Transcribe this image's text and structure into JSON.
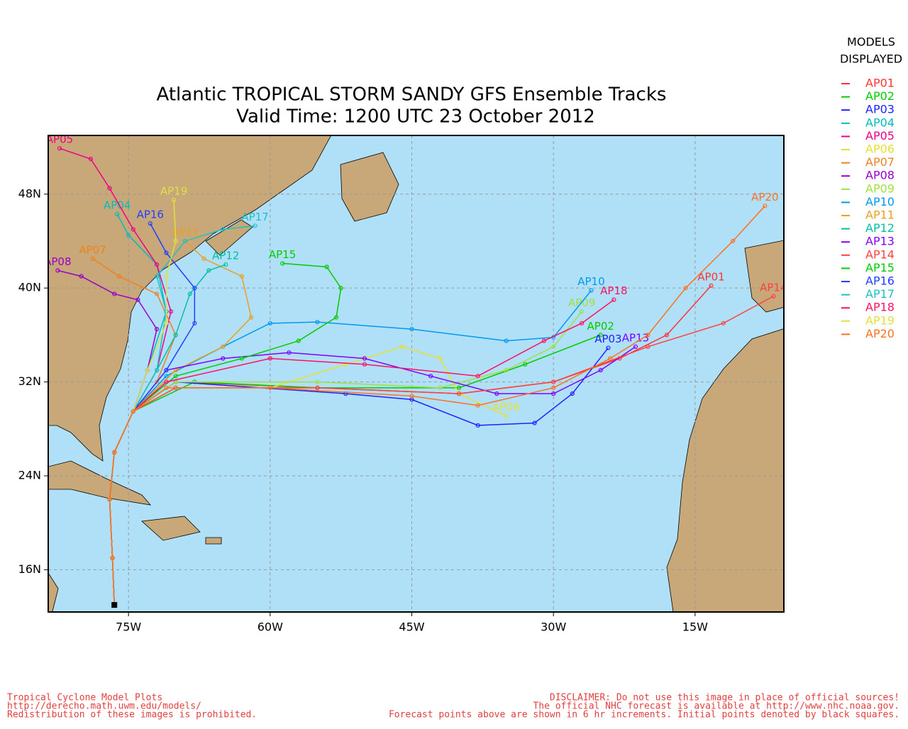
{
  "chart_data": {
    "type": "track_map",
    "title": "Atlantic TROPICAL STORM SANDY GFS Ensemble Tracks",
    "subtitle": "Valid Time: 1200 UTC 23 October 2012",
    "xlim": [
      -83.5,
      -5.6
    ],
    "ylim": [
      12.4,
      53
    ],
    "xticks": [
      {
        "value": -75,
        "label": "75W"
      },
      {
        "value": -60,
        "label": "60W"
      },
      {
        "value": -45,
        "label": "45W"
      },
      {
        "value": -30,
        "label": "30W"
      },
      {
        "value": -15,
        "label": "15W"
      }
    ],
    "yticks": [
      {
        "value": 16,
        "label": "16N"
      },
      {
        "value": 24,
        "label": "24N"
      },
      {
        "value": 32,
        "label": "32N"
      },
      {
        "value": 40,
        "label": "40N"
      },
      {
        "value": 48,
        "label": "48N"
      }
    ],
    "grid": true,
    "legend_title": [
      "MODELS",
      "DISPLAYED"
    ],
    "series": [
      {
        "name": "AP01",
        "color": "#ff3333",
        "lon": [
          -76.5,
          -76.7,
          -77,
          -76.5,
          -74.5,
          -70,
          -55,
          -40,
          -30,
          -23,
          -18,
          -13.3
        ],
        "lat": [
          13,
          17,
          22,
          26,
          29.5,
          32,
          31.5,
          31,
          32,
          34,
          36,
          40.2
        ]
      },
      {
        "name": "AP02",
        "color": "#00cc00",
        "lon": [
          -76.5,
          -76.7,
          -77,
          -76.5,
          -74.5,
          -68,
          -55,
          -40,
          -33,
          -25
        ],
        "lat": [
          13,
          17,
          22,
          26,
          29.5,
          32,
          31.5,
          31.5,
          33.5,
          36
        ]
      },
      {
        "name": "AP03",
        "color": "#2020ff",
        "lon": [
          -76.5,
          -76.7,
          -77,
          -76.5,
          -74.5,
          -70,
          -52,
          -45,
          -38,
          -32,
          -28,
          -24.2
        ],
        "lat": [
          13,
          17,
          22,
          26,
          29.5,
          32,
          31,
          30.5,
          28.3,
          28.5,
          31,
          34.9
        ]
      },
      {
        "name": "AP04",
        "color": "#00bbbb",
        "lon": [
          -76.5,
          -76.7,
          -77,
          -76.5,
          -74.5,
          -73,
          -71,
          -72,
          -75,
          -76.2
        ],
        "lat": [
          13,
          17,
          22,
          26,
          29.5,
          33,
          38,
          42,
          44.5,
          46.3
        ]
      },
      {
        "name": "AP05",
        "color": "#ee0088",
        "lon": [
          -76.5,
          -76.7,
          -77,
          -76.5,
          -74.5,
          -72,
          -70.5,
          -72,
          -74.5,
          -77,
          -79,
          -82.3
        ],
        "lat": [
          13,
          17,
          22,
          26,
          29.5,
          33,
          38,
          42,
          45,
          48.5,
          51,
          51.9
        ]
      },
      {
        "name": "AP06",
        "color": "#e8e030",
        "lon": [
          -76.5,
          -76.7,
          -77,
          -76.5,
          -74.5,
          -70,
          -60,
          -52,
          -46,
          -42,
          -40,
          -35
        ],
        "lat": [
          13,
          17,
          22,
          26,
          29.5,
          31.5,
          31.5,
          33.5,
          35,
          34,
          31,
          29.1
        ]
      },
      {
        "name": "AP07",
        "color": "#f08020",
        "lon": [
          -76.5,
          -76.7,
          -77,
          -76.5,
          -74.5,
          -72,
          -70,
          -72,
          -76,
          -78.8
        ],
        "lat": [
          13,
          17,
          22,
          26,
          29.5,
          32,
          36,
          39.5,
          41,
          42.5
        ]
      },
      {
        "name": "AP08",
        "color": "#9900cc",
        "lon": [
          -76.5,
          -76.7,
          -77,
          -76.5,
          -74.5,
          -73,
          -72,
          -74,
          -76.5,
          -80,
          -82.5
        ],
        "lat": [
          13,
          17,
          22,
          26,
          29.5,
          33,
          36.5,
          39,
          39.5,
          41,
          41.5
        ]
      },
      {
        "name": "AP09",
        "color": "#a0e040",
        "lon": [
          -76.5,
          -76.7,
          -77,
          -76.5,
          -74.5,
          -70,
          -55,
          -42,
          -35,
          -30,
          -27
        ],
        "lat": [
          13,
          17,
          22,
          26,
          29.5,
          32,
          32,
          31.5,
          33,
          35,
          38
        ]
      },
      {
        "name": "AP10",
        "color": "#0099ee",
        "lon": [
          -76.5,
          -76.7,
          -77,
          -76.5,
          -74.5,
          -71,
          -65,
          -60,
          -55,
          -45,
          -35,
          -30,
          -26
        ],
        "lat": [
          13,
          17,
          22,
          26,
          29.5,
          32.5,
          35,
          37,
          37.1,
          36.5,
          35.5,
          35.8,
          39.8
        ]
      },
      {
        "name": "AP11",
        "color": "#e8a020",
        "lon": [
          -76.5,
          -76.7,
          -77,
          -76.5,
          -74.5,
          -70,
          -65,
          -62,
          -63,
          -67,
          -69
        ],
        "lat": [
          13,
          17,
          22,
          26,
          29.5,
          33,
          35,
          37.5,
          41,
          42.5,
          44
        ]
      },
      {
        "name": "AP12",
        "color": "#00c0a0",
        "lon": [
          -76.5,
          -76.7,
          -77,
          -76.5,
          -74.5,
          -72,
          -70,
          -68.5,
          -66.5,
          -64.7
        ],
        "lat": [
          13,
          17,
          22,
          26,
          29.5,
          33,
          36,
          39.5,
          41.5,
          42
        ]
      },
      {
        "name": "AP13",
        "color": "#8000ff",
        "lon": [
          -76.5,
          -76.7,
          -77,
          -76.5,
          -74.5,
          -71,
          -65,
          -58,
          -50,
          -43,
          -36,
          -30,
          -25,
          -21.3
        ],
        "lat": [
          13,
          17,
          22,
          26,
          29.5,
          33,
          34,
          34.5,
          34,
          32.5,
          31,
          31,
          33,
          35
        ]
      },
      {
        "name": "AP14",
        "color": "#ff4040",
        "lon": [
          -76.5,
          -76.7,
          -77,
          -76.5,
          -74.5,
          -70,
          -55,
          -40,
          -30,
          -20,
          -12,
          -6.7
        ],
        "lat": [
          13,
          17,
          22,
          26,
          29.5,
          31.5,
          31.5,
          31,
          32,
          35,
          37,
          39.3
        ]
      },
      {
        "name": "AP15",
        "color": "#00cc00",
        "lon": [
          -76.5,
          -76.7,
          -77,
          -76.5,
          -74.5,
          -70,
          -63,
          -57,
          -53,
          -52.5,
          -54,
          -58.7
        ],
        "lat": [
          13,
          17,
          22,
          26,
          29.5,
          32.5,
          34,
          35.5,
          37.5,
          40,
          41.8,
          42.1
        ]
      },
      {
        "name": "AP16",
        "color": "#2040ff",
        "lon": [
          -76.5,
          -76.7,
          -77,
          -76.5,
          -74.5,
          -71,
          -68,
          -68,
          -71,
          -72.7
        ],
        "lat": [
          13,
          17,
          22,
          26,
          29.5,
          33,
          37,
          40,
          43,
          45.5
        ]
      },
      {
        "name": "AP17",
        "color": "#20c0c0",
        "lon": [
          -76.5,
          -76.7,
          -77,
          -76.5,
          -74.5,
          -72,
          -71,
          -72,
          -69,
          -65,
          -61.6
        ],
        "lat": [
          13,
          17,
          22,
          26,
          29.5,
          33,
          38,
          41,
          44,
          45,
          45.3
        ]
      },
      {
        "name": "AP18",
        "color": "#ff1060",
        "lon": [
          -76.5,
          -76.7,
          -77,
          -76.5,
          -74.5,
          -71,
          -60,
          -50,
          -38,
          -31,
          -27,
          -23.6
        ],
        "lat": [
          13,
          17,
          22,
          26,
          29.5,
          32,
          34,
          33.5,
          32.5,
          35.5,
          37,
          39
        ]
      },
      {
        "name": "AP19",
        "color": "#e0e040",
        "lon": [
          -76.5,
          -76.7,
          -77,
          -76.5,
          -74.5,
          -73,
          -71,
          -71,
          -70,
          -70.2
        ],
        "lat": [
          13,
          17,
          22,
          26,
          29.5,
          33,
          37,
          41,
          44,
          47.5
        ]
      },
      {
        "name": "AP20",
        "color": "#ff7020",
        "lon": [
          -76.5,
          -76.7,
          -77,
          -76.5,
          -74.5,
          -71,
          -60,
          -45,
          -38,
          -30,
          -24,
          -20,
          -16,
          -11,
          -7.6
        ],
        "lat": [
          13,
          17,
          22,
          26,
          29.5,
          31.5,
          31.5,
          30.8,
          30,
          31.5,
          34,
          36,
          40,
          44,
          47
        ]
      }
    ]
  },
  "footer_left": [
    "Tropical Cyclone Model Plots",
    "http://derecho.math.uwm.edu/models/",
    "Redistribution of these images is prohibited."
  ],
  "footer_right": [
    "DISCLAIMER: Do not use this image in place of official sources!",
    "The official NHC forecast is available at http://www.nhc.noaa.gov.",
    "Forecast points above are shown in 6 hr increments. Initial points denoted by black squares."
  ]
}
